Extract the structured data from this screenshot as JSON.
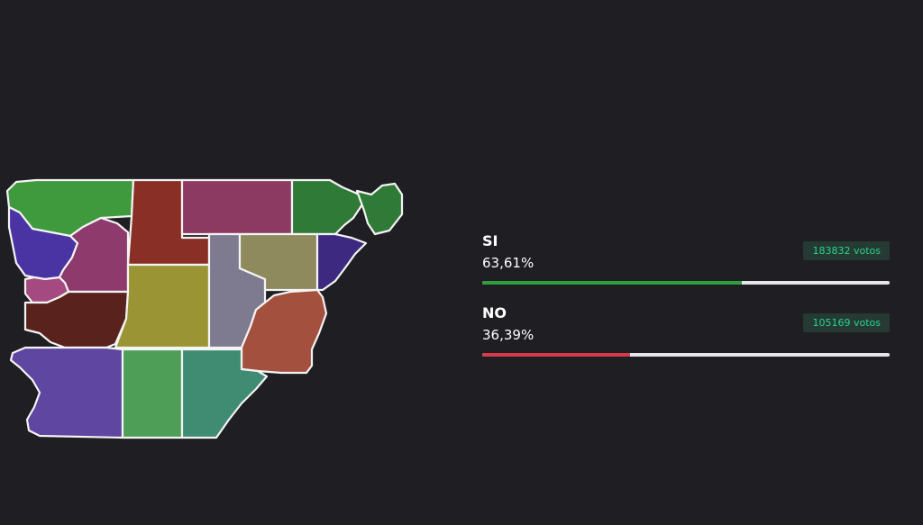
{
  "results": [
    {
      "option": "SI",
      "percent_label": "63,61%",
      "percent": 63.61,
      "votes_label": "183832 votos",
      "votes": 183832,
      "color": "#2e9e3e"
    },
    {
      "option": "NO",
      "percent_label": "36,39%",
      "percent": 36.39,
      "votes_label": "105169 votos",
      "votes": 105169,
      "color": "#d63a4a"
    }
  ],
  "colors": {
    "background": "#1e1e23",
    "votes_badge_bg": "#253a33",
    "votes_badge_text": "#2bd38f",
    "bar_track": "#e6e6ea"
  },
  "map": {
    "regions": [
      {
        "id": "nw-green",
        "color": "#3f9a3d"
      },
      {
        "id": "n-red",
        "color": "#8a2f26"
      },
      {
        "id": "n-magenta",
        "color": "#8c3a62"
      },
      {
        "id": "ne-green",
        "color": "#2f7a36"
      },
      {
        "id": "w-purple",
        "color": "#4a34a4"
      },
      {
        "id": "w-magenta",
        "color": "#8e3a6c"
      },
      {
        "id": "w-pink",
        "color": "#a54a80"
      },
      {
        "id": "w-brown",
        "color": "#5a221c"
      },
      {
        "id": "c-olive",
        "color": "#9a9435"
      },
      {
        "id": "c-grey",
        "color": "#7e7a90"
      },
      {
        "id": "c-khaki",
        "color": "#8e8a5e"
      },
      {
        "id": "e-indigo",
        "color": "#3d2980"
      },
      {
        "id": "e-terracotta",
        "color": "#a4503e"
      },
      {
        "id": "sw-violet",
        "color": "#5f46a0"
      },
      {
        "id": "s-green",
        "color": "#4e9e58"
      },
      {
        "id": "s-teal",
        "color": "#3f8c72"
      }
    ]
  }
}
